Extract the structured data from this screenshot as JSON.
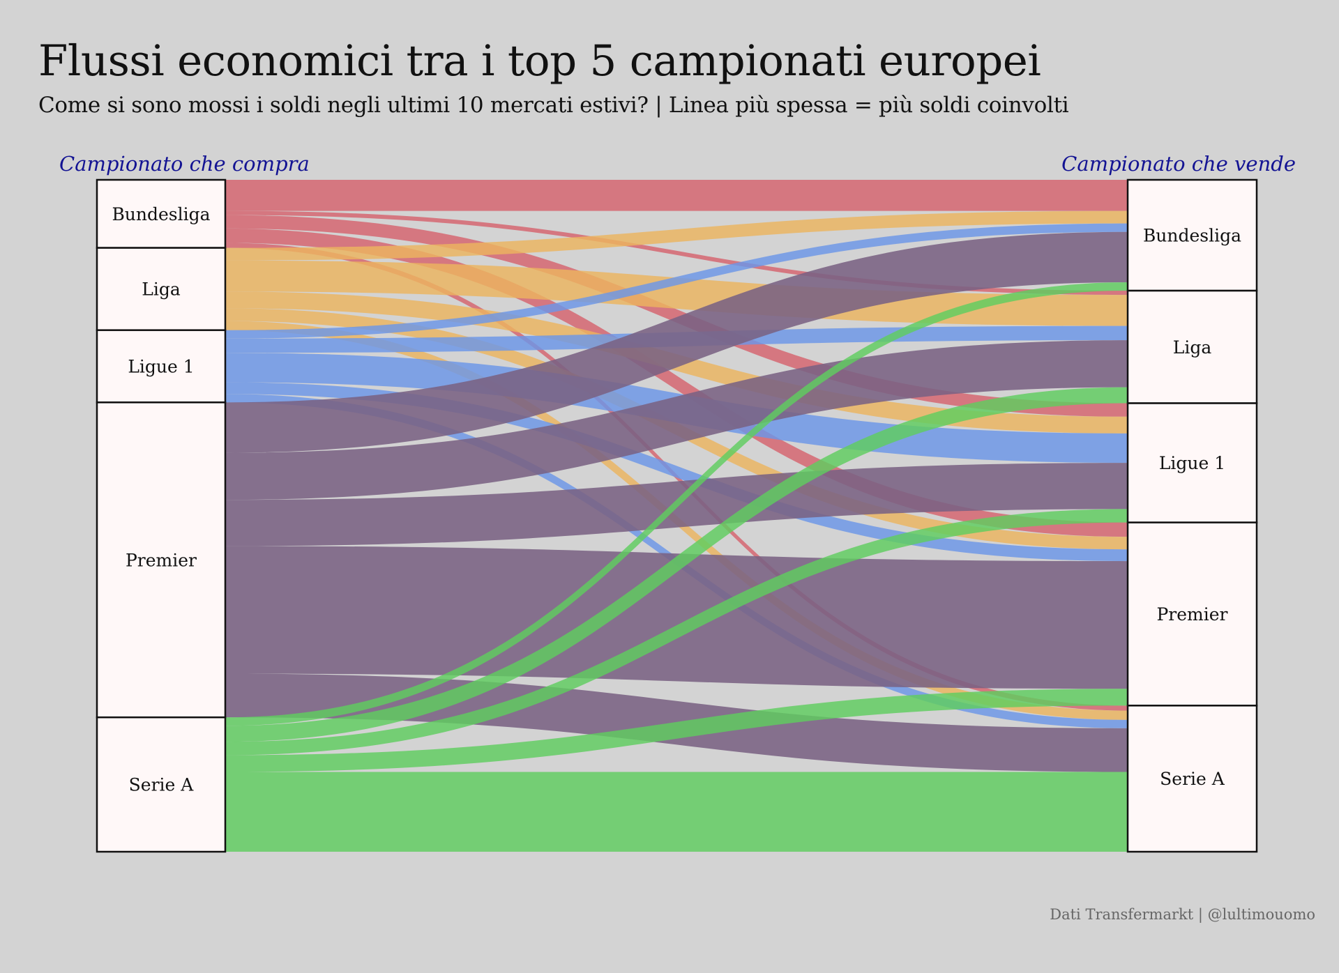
{
  "title": "Flussi economici tra i top 5 campionati europei",
  "subtitle": "Come si sono mossi i soldi negli ultimi 10 mercati estivi? | Linea più spessa = più soldi coinvolti",
  "source": "Dati Transfermarkt | @lultimouomo",
  "colors": {
    "Bundesliga": "#d6636e",
    "Liga": "#ebb55f",
    "Ligue 1": "#6b96e8",
    "Premier": "#7a6283",
    "Serie A": "#5fcd5f",
    "node_fill": "#fff8f8",
    "axis_label": "#131393",
    "background": "#d3d3d3"
  },
  "chart_data": {
    "type": "sankey",
    "left_axis_label": "Campionato che compra",
    "right_axis_label": "Campionato che vende",
    "nodes": [
      "Bundesliga",
      "Liga",
      "Ligue 1",
      "Premier",
      "Serie A"
    ],
    "flows": [
      {
        "from": "Bundesliga",
        "to": "Bundesliga",
        "value": 37
      },
      {
        "from": "Bundesliga",
        "to": "Liga",
        "value": 5
      },
      {
        "from": "Bundesliga",
        "to": "Ligue 1",
        "value": 16
      },
      {
        "from": "Bundesliga",
        "to": "Premier",
        "value": 17
      },
      {
        "from": "Bundesliga",
        "to": "Serie A",
        "value": 6
      },
      {
        "from": "Liga",
        "to": "Bundesliga",
        "value": 15
      },
      {
        "from": "Liga",
        "to": "Liga",
        "value": 37
      },
      {
        "from": "Liga",
        "to": "Ligue 1",
        "value": 20
      },
      {
        "from": "Liga",
        "to": "Premier",
        "value": 15
      },
      {
        "from": "Liga",
        "to": "Serie A",
        "value": 11
      },
      {
        "from": "Ligue 1",
        "to": "Bundesliga",
        "value": 10
      },
      {
        "from": "Ligue 1",
        "to": "Liga",
        "value": 17
      },
      {
        "from": "Ligue 1",
        "to": "Ligue 1",
        "value": 35
      },
      {
        "from": "Ligue 1",
        "to": "Premier",
        "value": 14
      },
      {
        "from": "Ligue 1",
        "to": "Serie A",
        "value": 10
      },
      {
        "from": "Premier",
        "to": "Bundesliga",
        "value": 60
      },
      {
        "from": "Premier",
        "to": "Liga",
        "value": 56
      },
      {
        "from": "Premier",
        "to": "Ligue 1",
        "value": 55
      },
      {
        "from": "Premier",
        "to": "Premier",
        "value": 152
      },
      {
        "from": "Premier",
        "to": "Serie A",
        "value": 52
      },
      {
        "from": "Serie A",
        "to": "Bundesliga",
        "value": 10
      },
      {
        "from": "Serie A",
        "to": "Liga",
        "value": 19
      },
      {
        "from": "Serie A",
        "to": "Ligue 1",
        "value": 16
      },
      {
        "from": "Serie A",
        "to": "Premier",
        "value": 20
      },
      {
        "from": "Serie A",
        "to": "Serie A",
        "value": 95
      }
    ]
  }
}
